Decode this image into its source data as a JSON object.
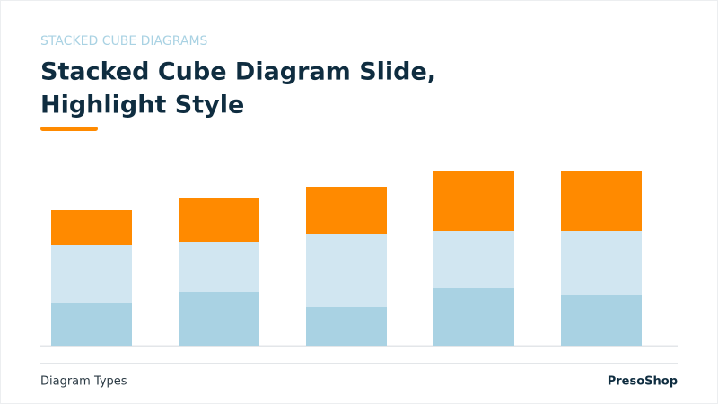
{
  "chart_data": {
    "type": "stacked-bar",
    "kicker": "STACKED CUBE DIAGRAMS",
    "title": [
      "Stacked Cube Diagram Slide,",
      "Highlight Style"
    ],
    "footer_left": "Diagram Types",
    "footer_right": "PresoShop",
    "ylim": [
      0,
      195
    ],
    "series": [
      {
        "color": "#a9d2e3",
        "values": [
          47,
          60,
          43,
          64,
          56
        ]
      },
      {
        "color": "#d1e6f1",
        "values": [
          65,
          56,
          81,
          64,
          72
        ]
      },
      {
        "color": "#ff8a00",
        "values": [
          39,
          49,
          53,
          67,
          67
        ]
      }
    ]
  }
}
